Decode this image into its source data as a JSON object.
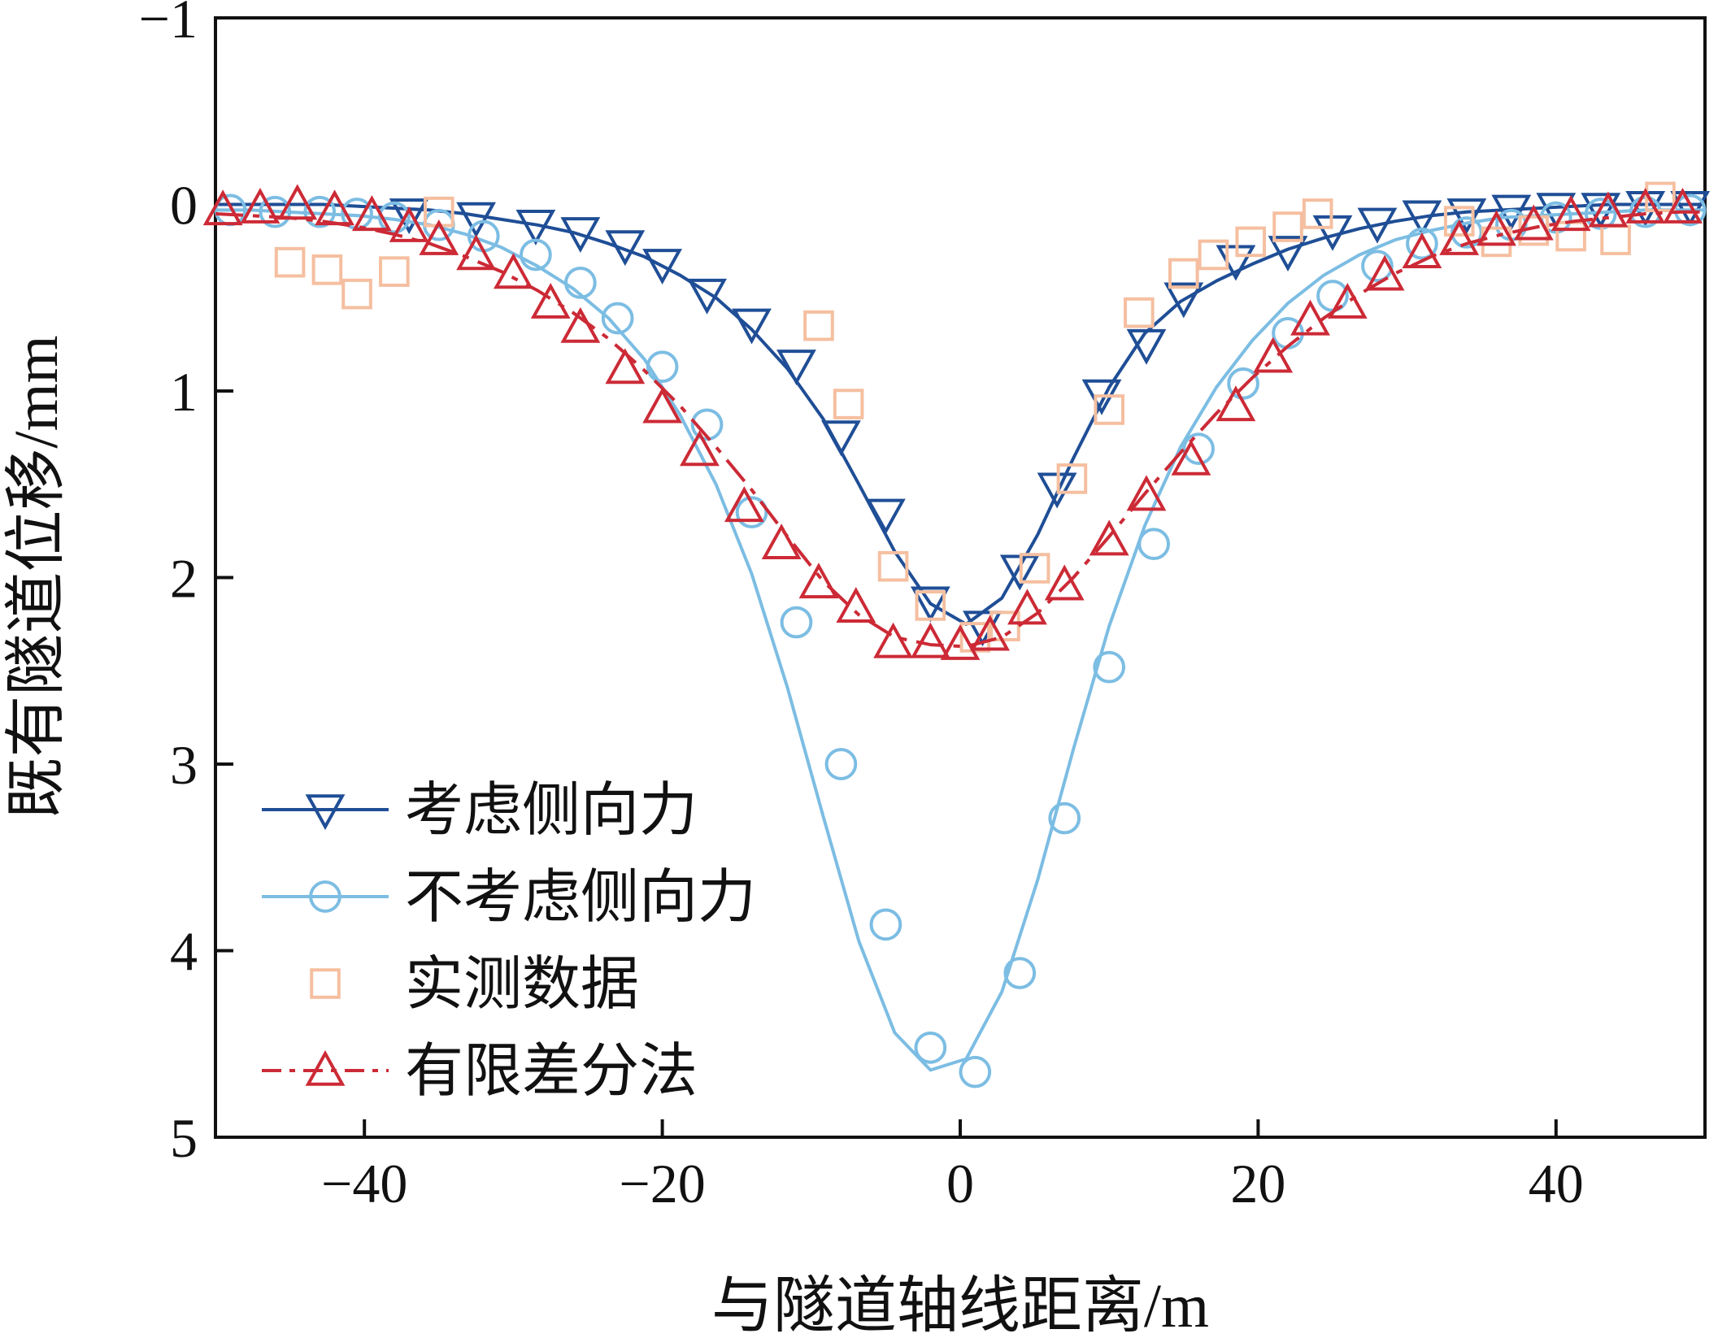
{
  "chart_data": {
    "type": "line",
    "title": "",
    "xlabel": "与隧道轴线距离/m",
    "ylabel": "既有隧道位移/mm",
    "xlim": [
      -50,
      50
    ],
    "ylim": [
      5,
      -1
    ],
    "y_inverted": true,
    "grid": false,
    "legend_position": "lower-left",
    "x_ticks": [
      -40,
      -20,
      0,
      20,
      40
    ],
    "x_tick_labels": [
      "−40",
      "−20",
      "0",
      "20",
      "40"
    ],
    "y_ticks": [
      -1,
      0,
      1,
      2,
      3,
      4,
      5
    ],
    "y_tick_labels": [
      "−1",
      "0",
      "1",
      "2",
      "3",
      "4",
      "5"
    ],
    "series": [
      {
        "name": "考虑侧向力",
        "color": "#1f4e96",
        "line_style": "solid",
        "marker": "triangle-down",
        "x": [
          -50,
          -47.6,
          -45.2,
          -42.8,
          -40.4,
          -38.0,
          -35.6,
          -33.2,
          -30.8,
          -28.4,
          -26.0,
          -23.6,
          -21.2,
          -18.8,
          -16.4,
          -14.0,
          -11.6,
          -9.2,
          -6.8,
          -4.4,
          -2.0,
          0.4,
          2.8,
          5.2,
          7.6,
          10.0,
          12.4,
          14.8,
          17.2,
          19.6,
          22.0,
          24.4,
          26.8,
          29.2,
          31.6,
          34.0,
          36.4,
          38.8,
          41.2,
          43.6,
          46.0,
          48.4,
          50
        ],
        "values": [
          0.0,
          0.0,
          0.0,
          0.0,
          0.01,
          0.02,
          0.03,
          0.05,
          0.08,
          0.11,
          0.15,
          0.21,
          0.28,
          0.38,
          0.5,
          0.67,
          0.88,
          1.15,
          1.5,
          1.86,
          2.14,
          2.25,
          2.11,
          1.77,
          1.36,
          0.98,
          0.69,
          0.52,
          0.41,
          0.32,
          0.24,
          0.18,
          0.13,
          0.09,
          0.06,
          0.04,
          0.03,
          0.02,
          0.01,
          0.0,
          0.0,
          0.0,
          0.0
        ],
        "marker_x": [
          -37,
          -32.5,
          -28.5,
          -25.5,
          -22.5,
          -20,
          -17,
          -14,
          -11,
          -8,
          -5,
          -2,
          1.5,
          4,
          6.5,
          9.5,
          12.5,
          15,
          18.5,
          22,
          25,
          28,
          31,
          34,
          37,
          40,
          43,
          46,
          49
        ],
        "marker_y": [
          0.05,
          0.07,
          0.11,
          0.15,
          0.22,
          0.32,
          0.48,
          0.64,
          0.86,
          1.24,
          1.66,
          2.13,
          2.26,
          1.96,
          1.52,
          1.02,
          0.75,
          0.5,
          0.3,
          0.25,
          0.14,
          0.1,
          0.06,
          0.05,
          0.03,
          0.02,
          0.02,
          0.01,
          0.01
        ]
      },
      {
        "name": "不考虑侧向力",
        "color": "#7cbde3",
        "line_style": "solid",
        "marker": "circle",
        "x": [
          -50,
          -47.6,
          -45.2,
          -42.8,
          -40.4,
          -38.0,
          -35.6,
          -33.2,
          -30.8,
          -28.4,
          -26.0,
          -23.6,
          -21.2,
          -18.8,
          -16.4,
          -14.0,
          -11.6,
          -9.2,
          -6.8,
          -4.4,
          -2.0,
          0.4,
          2.8,
          5.2,
          7.6,
          10.0,
          12.4,
          14.8,
          17.2,
          19.6,
          22.0,
          24.4,
          26.8,
          29.2,
          31.6,
          34.0,
          36.4,
          38.8,
          41.2,
          43.6,
          46.0,
          48.4,
          50
        ],
        "values": [
          0.03,
          0.03,
          0.04,
          0.05,
          0.06,
          0.08,
          0.11,
          0.16,
          0.23,
          0.33,
          0.45,
          0.61,
          0.83,
          1.13,
          1.5,
          1.98,
          2.59,
          3.28,
          3.95,
          4.44,
          4.64,
          4.58,
          4.22,
          3.62,
          2.92,
          2.26,
          1.72,
          1.3,
          0.98,
          0.73,
          0.53,
          0.38,
          0.27,
          0.19,
          0.14,
          0.1,
          0.07,
          0.06,
          0.05,
          0.04,
          0.03,
          0.03,
          0.03
        ],
        "marker_x": [
          -49,
          -46,
          -43,
          -40.5,
          -38,
          -35,
          -32,
          -28.5,
          -25.5,
          -23,
          -20,
          -17,
          -14,
          -11,
          -8,
          -5,
          -2,
          1,
          4,
          7,
          10,
          13,
          16,
          19,
          22,
          25,
          28,
          31,
          34,
          37,
          40,
          43,
          46,
          49
        ],
        "marker_y": [
          0.03,
          0.04,
          0.04,
          0.05,
          0.07,
          0.11,
          0.17,
          0.27,
          0.42,
          0.61,
          0.87,
          1.18,
          1.65,
          2.24,
          3.0,
          3.86,
          4.52,
          4.65,
          4.12,
          3.29,
          2.48,
          1.82,
          1.31,
          0.96,
          0.69,
          0.49,
          0.33,
          0.21,
          0.15,
          0.11,
          0.07,
          0.05,
          0.04,
          0.03
        ]
      },
      {
        "name": "实测数据",
        "color": "#f5bfa0",
        "line_style": "none",
        "marker": "square",
        "x": [
          -45,
          -42.5,
          -40.5,
          -38,
          -35,
          -9.5,
          -7.5,
          -4.5,
          -2,
          1,
          3,
          5,
          7.5,
          10,
          12,
          15,
          17,
          19.5,
          22,
          24,
          33.5,
          36,
          38.5,
          41,
          44,
          47
        ],
        "values": [
          0.31,
          0.35,
          0.48,
          0.36,
          0.04,
          0.65,
          1.07,
          1.94,
          2.15,
          2.32,
          2.26,
          1.95,
          1.47,
          1.1,
          0.58,
          0.37,
          0.27,
          0.2,
          0.12,
          0.05,
          0.09,
          0.2,
          0.14,
          0.17,
          0.19,
          -0.04
        ]
      },
      {
        "name": "有限差分法",
        "color": "#cc2a36",
        "line_style": "dash-dot",
        "marker": "triangle-up",
        "x": [
          -50,
          -47.6,
          -45.2,
          -42.8,
          -40.4,
          -38.0,
          -35.6,
          -33.2,
          -30.8,
          -28.4,
          -26.0,
          -23.6,
          -21.2,
          -18.8,
          -16.4,
          -14.0,
          -11.6,
          -9.2,
          -6.8,
          -4.4,
          -2.0,
          0.4,
          2.8,
          5.2,
          7.6,
          10.0,
          12.4,
          14.8,
          17.2,
          19.6,
          22.0,
          24.4,
          26.8,
          29.2,
          31.6,
          34.0,
          36.4,
          38.8,
          41.2,
          43.6,
          46.0,
          48.4,
          50
        ],
        "values": [
          0.05,
          0.06,
          0.07,
          0.09,
          0.12,
          0.16,
          0.21,
          0.28,
          0.36,
          0.46,
          0.58,
          0.72,
          0.89,
          1.08,
          1.3,
          1.53,
          1.78,
          2.02,
          2.2,
          2.32,
          2.36,
          2.37,
          2.32,
          2.19,
          2.0,
          1.78,
          1.55,
          1.33,
          1.12,
          0.93,
          0.76,
          0.61,
          0.48,
          0.37,
          0.28,
          0.21,
          0.16,
          0.12,
          0.09,
          0.07,
          0.05,
          0.04,
          0.04
        ],
        "marker_x": [
          -49.5,
          -47,
          -44.5,
          -42,
          -39.5,
          -37,
          -35,
          -32.5,
          -30,
          -27.5,
          -25.5,
          -22.5,
          -20,
          -17.5,
          -14.5,
          -12,
          -9.5,
          -7,
          -4.5,
          -2,
          0,
          2,
          4.5,
          7,
          10,
          12.5,
          15.5,
          18.5,
          21,
          23.5,
          26,
          28.5,
          31,
          33.5,
          36,
          38.5,
          41,
          43.5,
          46,
          48.5
        ],
        "marker_y": [
          0.03,
          0.02,
          0.0,
          0.03,
          0.06,
          0.12,
          0.19,
          0.27,
          0.37,
          0.53,
          0.66,
          0.88,
          1.09,
          1.32,
          1.62,
          1.82,
          2.03,
          2.16,
          2.35,
          2.35,
          2.36,
          2.31,
          2.17,
          2.04,
          1.8,
          1.56,
          1.37,
          1.08,
          0.82,
          0.62,
          0.53,
          0.38,
          0.26,
          0.19,
          0.14,
          0.11,
          0.06,
          0.04,
          0.02,
          0.02
        ]
      }
    ]
  }
}
